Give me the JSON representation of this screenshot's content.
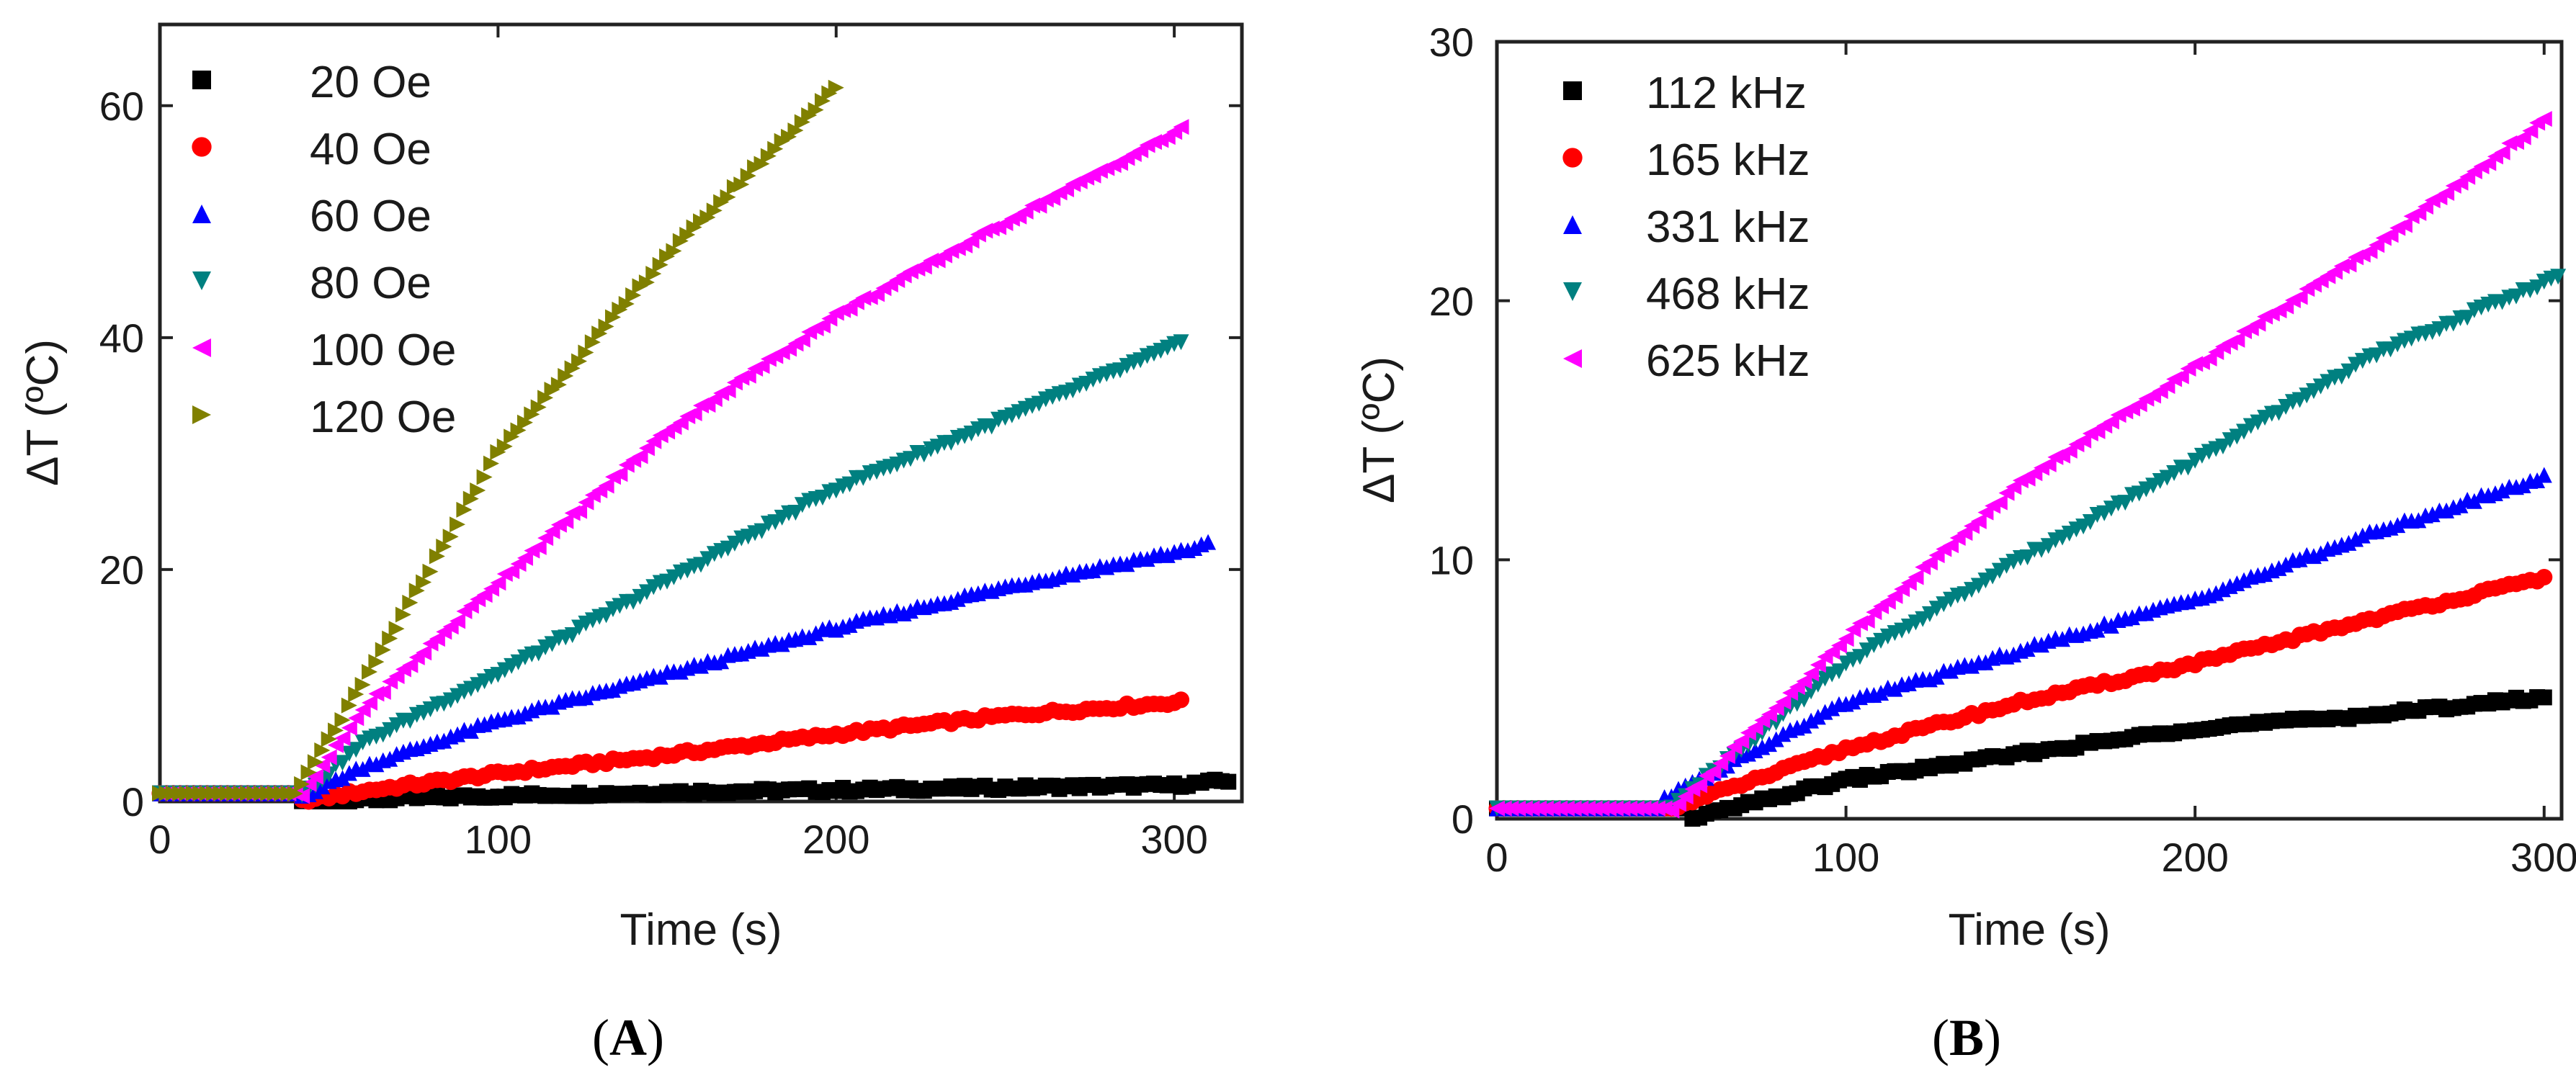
{
  "chart_data": [
    {
      "type": "scatter",
      "panel_label": "(A)",
      "panel_letter": "A",
      "xlabel": "Time (s)",
      "ylabel": "ΔT (ºC)",
      "xlim": [
        0,
        320
      ],
      "ylim": [
        0,
        67
      ],
      "xticks": [
        0,
        100,
        200,
        300
      ],
      "yticks": [
        0,
        20,
        40,
        60
      ],
      "xtick_labels": [
        "0",
        "100",
        "200",
        "300"
      ],
      "ytick_labels": [
        "0",
        "20",
        "40",
        "60"
      ],
      "legend_position": "top-left",
      "series": [
        {
          "name": "20 Oe",
          "marker": "square",
          "color": "#000000",
          "start": 0,
          "end": 316,
          "lag": 42,
          "lag_value": 0.7,
          "points": [
            [
              42,
              0
            ],
            [
              100,
              0.5
            ],
            [
              150,
              0.8
            ],
            [
              200,
              1.0
            ],
            [
              250,
              1.2
            ],
            [
              300,
              1.4
            ],
            [
              316,
              1.8
            ]
          ]
        },
        {
          "name": "40 Oe",
          "marker": "circle",
          "color": "#ff0000",
          "start": 0,
          "end": 302,
          "lag": 42,
          "lag_value": 0.7,
          "points": [
            [
              42,
              0
            ],
            [
              60,
              0.9
            ],
            [
              100,
              2.4
            ],
            [
              150,
              4.0
            ],
            [
              200,
              5.8
            ],
            [
              250,
              7.4
            ],
            [
              302,
              8.6
            ]
          ]
        },
        {
          "name": "60 Oe",
          "marker": "triangle-up",
          "color": "#0000ff",
          "start": 0,
          "end": 310,
          "lag": 42,
          "lag_value": 0.7,
          "points": [
            [
              42,
              0.5
            ],
            [
              60,
              3.0
            ],
            [
              100,
              7.0
            ],
            [
              150,
              11.0
            ],
            [
              200,
              15.0
            ],
            [
              250,
              18.5
            ],
            [
              300,
              21.5
            ],
            [
              310,
              22.2
            ]
          ]
        },
        {
          "name": "80 Oe",
          "marker": "triangle-down",
          "color": "#008080",
          "start": 0,
          "end": 302,
          "lag": 42,
          "lag_value": 0.7,
          "points": [
            [
              42,
              0.5
            ],
            [
              60,
              5.0
            ],
            [
              100,
              11.0
            ],
            [
              150,
              19.0
            ],
            [
              200,
              27.0
            ],
            [
              250,
              33.0
            ],
            [
              302,
              39.5
            ]
          ]
        },
        {
          "name": "100 Oe",
          "marker": "triangle-left",
          "color": "#ff00ff",
          "start": 0,
          "end": 302,
          "lag": 42,
          "lag_value": 0.7,
          "points": [
            [
              42,
              0.5
            ],
            [
              60,
              8.0
            ],
            [
              100,
              19.0
            ],
            [
              150,
              32.0
            ],
            [
              200,
              42.0
            ],
            [
              250,
              50.0
            ],
            [
              302,
              58.0
            ]
          ]
        },
        {
          "name": "120 Oe",
          "marker": "triangle-right",
          "color": "#808000",
          "start": 0,
          "end": 200,
          "lag": 40,
          "lag_value": 0.7,
          "points": [
            [
              40,
              0.5
            ],
            [
              60,
              10.0
            ],
            [
              100,
              30.0
            ],
            [
              150,
              47.0
            ],
            [
              200,
              61.5
            ]
          ]
        }
      ]
    },
    {
      "type": "scatter",
      "panel_label": "(B)",
      "panel_letter": "B",
      "xlabel": "Time (s)",
      "ylabel": "ΔT (ºC)",
      "xlim": [
        0,
        305
      ],
      "ylim": [
        0,
        30
      ],
      "xticks": [
        0,
        100,
        200,
        300
      ],
      "yticks": [
        0,
        10,
        20,
        30
      ],
      "xtick_labels": [
        "0",
        "100",
        "200",
        "300"
      ],
      "ytick_labels": [
        "0",
        "10",
        "20",
        "30"
      ],
      "legend_position": "top-left",
      "series": [
        {
          "name": "112 kHz",
          "marker": "square",
          "color": "#000000",
          "start": 0,
          "end": 300,
          "lag": 55,
          "lag_value": 0.4,
          "points": [
            [
              55,
              0
            ],
            [
              100,
              1.5
            ],
            [
              150,
              2.5
            ],
            [
              200,
              3.5
            ],
            [
              250,
              4.0
            ],
            [
              300,
              4.7
            ]
          ]
        },
        {
          "name": "165 kHz",
          "marker": "circle",
          "color": "#ff0000",
          "start": 0,
          "end": 300,
          "lag": 52,
          "lag_value": 0.4,
          "points": [
            [
              52,
              0.5
            ],
            [
              100,
              2.7
            ],
            [
              150,
              4.5
            ],
            [
              200,
              6.0
            ],
            [
              250,
              7.7
            ],
            [
              300,
              9.3
            ]
          ]
        },
        {
          "name": "331 kHz",
          "marker": "triangle-up",
          "color": "#0000ff",
          "start": 0,
          "end": 300,
          "lag": 48,
          "lag_value": 0.4,
          "points": [
            [
              48,
              0.8
            ],
            [
              100,
              4.5
            ],
            [
              150,
              6.5
            ],
            [
              200,
              8.5
            ],
            [
              250,
              11.0
            ],
            [
              300,
              13.2
            ]
          ]
        },
        {
          "name": "468 kHz",
          "marker": "triangle-down",
          "color": "#008080",
          "start": 0,
          "end": 305,
          "lag": 50,
          "lag_value": 0.4,
          "points": [
            [
              50,
              0.5
            ],
            [
              100,
              6.0
            ],
            [
              150,
              10.0
            ],
            [
              200,
              13.8
            ],
            [
              250,
              17.8
            ],
            [
              305,
              21.0
            ]
          ]
        },
        {
          "name": "625 kHz",
          "marker": "triangle-left",
          "color": "#ff00ff",
          "start": 0,
          "end": 300,
          "lag": 50,
          "lag_value": 0.4,
          "points": [
            [
              50,
              0.3
            ],
            [
              100,
              7.0
            ],
            [
              150,
              13.0
            ],
            [
              200,
              17.5
            ],
            [
              250,
              22.0
            ],
            [
              300,
              27.0
            ]
          ]
        }
      ]
    }
  ]
}
